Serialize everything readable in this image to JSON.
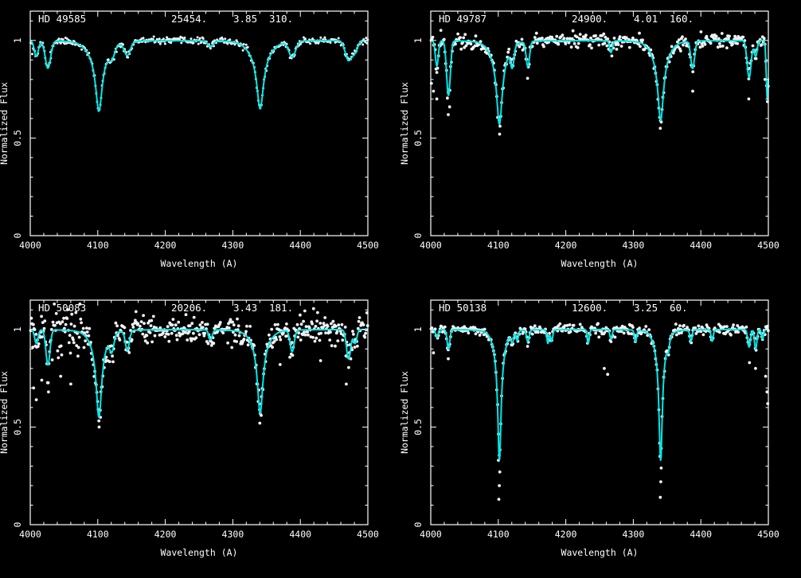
{
  "figure": {
    "description": "Four-panel stellar spectra grid with observed data (white dots) and model fits (cyan lines)",
    "xlabel": "Wavelength (A)",
    "ylabel": "Normalized Flux"
  },
  "style": {
    "background": "#000000",
    "axis_color": "#ffffff",
    "model_color": "#00e8e8",
    "data_color": "#f2f2f2"
  },
  "chart_data": [
    {
      "type": "line",
      "title": "HD 49585",
      "teff": "25454.",
      "logg": "3.85",
      "vsini": "310.",
      "xlabel": "Wavelength (A)",
      "ylabel": "Normalized Flux",
      "xlim": [
        4000,
        4500
      ],
      "ylim": [
        0,
        1.15
      ],
      "xticks": [
        4000,
        4100,
        4200,
        4300,
        4400,
        4500
      ],
      "yticks": [
        0,
        0.5,
        1
      ],
      "series": [
        {
          "name": "observed",
          "marker": "dot",
          "color": "#f2f2f2"
        },
        {
          "name": "model fit",
          "type": "line",
          "color": "#00e8e8"
        }
      ],
      "model_lines": [
        {
          "c": 4101.7,
          "d": 0.3,
          "w": 6.0,
          "t": "l"
        },
        {
          "c": 4101.7,
          "d": 0.06,
          "w": 15,
          "t": "g"
        },
        {
          "c": 4340.5,
          "d": 0.29,
          "w": 6.0,
          "t": "l"
        },
        {
          "c": 4340.5,
          "d": 0.06,
          "w": 15,
          "t": "g"
        },
        {
          "c": 4009.0,
          "d": 0.08,
          "w": 3.0,
          "t": "g"
        },
        {
          "c": 4026.2,
          "d": 0.14,
          "w": 4.0,
          "t": "g"
        },
        {
          "c": 4120.8,
          "d": 0.05,
          "w": 4.0,
          "t": "g"
        },
        {
          "c": 4143.8,
          "d": 0.07,
          "w": 4.5,
          "t": "g"
        },
        {
          "c": 4267.0,
          "d": 0.03,
          "w": 4.0,
          "t": "g"
        },
        {
          "c": 4387.9,
          "d": 0.08,
          "w": 5.0,
          "t": "g"
        },
        {
          "c": 4471.5,
          "d": 0.1,
          "w": 5.0,
          "t": "g"
        },
        {
          "c": 4481.2,
          "d": 0.05,
          "w": 4.0,
          "t": "g"
        }
      ],
      "noise_sigma": 0.008,
      "dot_radius": 1.5,
      "dot_step": 1.2,
      "seed": 11,
      "outliers": [
        [
          4003,
          0.93
        ],
        [
          4030,
          0.94
        ],
        [
          4468,
          0.92
        ]
      ]
    },
    {
      "type": "line",
      "title": "HD 49787",
      "teff": "24900.",
      "logg": "4.01",
      "vsini": "160.",
      "xlabel": "Wavelength (A)",
      "ylabel": "Normalized Flux",
      "xlim": [
        4000,
        4500
      ],
      "ylim": [
        0,
        1.15
      ],
      "xticks": [
        4000,
        4100,
        4200,
        4300,
        4400,
        4500
      ],
      "yticks": [
        0,
        0.5,
        1
      ],
      "series": [
        {
          "name": "observed",
          "marker": "dot",
          "color": "#f2f2f2"
        },
        {
          "name": "model fit",
          "type": "line",
          "color": "#00e8e8"
        }
      ],
      "model_lines": [
        {
          "c": 4101.7,
          "d": 0.36,
          "w": 5.0,
          "t": "l"
        },
        {
          "c": 4101.7,
          "d": 0.07,
          "w": 12,
          "t": "g"
        },
        {
          "c": 4340.5,
          "d": 0.34,
          "w": 5.0,
          "t": "l"
        },
        {
          "c": 4340.5,
          "d": 0.07,
          "w": 12,
          "t": "g"
        },
        {
          "c": 4009.0,
          "d": 0.13,
          "w": 2.2,
          "t": "g"
        },
        {
          "c": 4026.2,
          "d": 0.28,
          "w": 2.8,
          "t": "g"
        },
        {
          "c": 4120.8,
          "d": 0.1,
          "w": 2.5,
          "t": "g"
        },
        {
          "c": 4143.8,
          "d": 0.13,
          "w": 2.5,
          "t": "g"
        },
        {
          "c": 4267.0,
          "d": 0.06,
          "w": 2.0,
          "t": "g"
        },
        {
          "c": 4387.9,
          "d": 0.14,
          "w": 2.8,
          "t": "g"
        },
        {
          "c": 4471.5,
          "d": 0.19,
          "w": 3.0,
          "t": "g"
        },
        {
          "c": 4481.2,
          "d": 0.08,
          "w": 2.2,
          "t": "g"
        },
        {
          "c": 4498.5,
          "d": 0.3,
          "w": 1.6,
          "t": "g"
        }
      ],
      "noise_sigma": 0.018,
      "dot_radius": 1.9,
      "dot_step": 1.2,
      "seed": 22,
      "outliers": [
        [
          4001,
          0.78
        ],
        [
          4004,
          0.74
        ],
        [
          4009,
          0.7
        ],
        [
          4026,
          0.62
        ],
        [
          4028,
          0.66
        ],
        [
          4102,
          0.52
        ],
        [
          4340,
          0.55
        ],
        [
          4388,
          0.74
        ],
        [
          4471,
          0.7
        ],
        [
          4495,
          0.8
        ]
      ]
    },
    {
      "type": "line",
      "title": "HD 50083",
      "teff": "20206.",
      "logg": "3.43",
      "vsini": "181.",
      "xlabel": "Wavelength (A)",
      "ylabel": "Normalized Flux",
      "xlim": [
        4000,
        4500
      ],
      "ylim": [
        0,
        1.15
      ],
      "xticks": [
        4000,
        4100,
        4200,
        4300,
        4400,
        4500
      ],
      "yticks": [
        0,
        0.5,
        1
      ],
      "series": [
        {
          "name": "observed",
          "marker": "dot",
          "color": "#f2f2f2"
        },
        {
          "name": "model fit",
          "type": "line",
          "color": "#00e8e8"
        }
      ],
      "model_lines": [
        {
          "c": 4101.7,
          "d": 0.4,
          "w": 5.0,
          "t": "l"
        },
        {
          "c": 4101.7,
          "d": 0.05,
          "w": 12,
          "t": "g"
        },
        {
          "c": 4340.5,
          "d": 0.38,
          "w": 5.0,
          "t": "l"
        },
        {
          "c": 4340.5,
          "d": 0.05,
          "w": 12,
          "t": "g"
        },
        {
          "c": 4009.0,
          "d": 0.07,
          "w": 2.5,
          "t": "g"
        },
        {
          "c": 4026.2,
          "d": 0.18,
          "w": 3.0,
          "t": "g"
        },
        {
          "c": 4120.8,
          "d": 0.08,
          "w": 3.0,
          "t": "g"
        },
        {
          "c": 4143.8,
          "d": 0.1,
          "w": 3.0,
          "t": "g"
        },
        {
          "c": 4267.0,
          "d": 0.05,
          "w": 2.5,
          "t": "g"
        },
        {
          "c": 4387.9,
          "d": 0.11,
          "w": 3.0,
          "t": "g"
        },
        {
          "c": 4471.5,
          "d": 0.15,
          "w": 3.2,
          "t": "g"
        },
        {
          "c": 4481.2,
          "d": 0.07,
          "w": 2.5,
          "t": "g"
        }
      ],
      "noise_sigma": 0.034,
      "noise_boost": {
        "below": 4075,
        "factor": 1.8
      },
      "dot_radius": 1.9,
      "dot_step": 1.0,
      "seed": 33,
      "outliers": [
        [
          4005,
          0.7
        ],
        [
          4009,
          0.64
        ],
        [
          4017,
          0.74
        ],
        [
          4027,
          0.68
        ],
        [
          4045,
          0.76
        ],
        [
          4060,
          0.72
        ],
        [
          4102,
          0.5
        ],
        [
          4104,
          0.55
        ],
        [
          4340,
          0.52
        ],
        [
          4342,
          0.56
        ],
        [
          4370,
          0.82
        ],
        [
          4430,
          0.84
        ],
        [
          4468,
          0.72
        ]
      ]
    },
    {
      "type": "line",
      "title": "HD 50138",
      "teff": "12600.",
      "logg": "3.25",
      "vsini": "60.",
      "xlabel": "Wavelength (A)",
      "ylabel": "Normalized Flux",
      "xlim": [
        4000,
        4500
      ],
      "ylim": [
        0,
        1.15
      ],
      "xticks": [
        4000,
        4100,
        4200,
        4300,
        4400,
        4500
      ],
      "yticks": [
        0,
        0.5,
        1
      ],
      "series": [
        {
          "name": "observed",
          "marker": "dot",
          "color": "#f2f2f2"
        },
        {
          "name": "model fit",
          "type": "line",
          "color": "#00e8e8"
        }
      ],
      "model_lines": [
        {
          "c": 4101.7,
          "d": 0.58,
          "w": 3.0,
          "t": "l"
        },
        {
          "c": 4101.7,
          "d": 0.09,
          "w": 8.0,
          "t": "g"
        },
        {
          "c": 4340.5,
          "d": 0.58,
          "w": 3.0,
          "t": "l"
        },
        {
          "c": 4340.5,
          "d": 0.09,
          "w": 8.0,
          "t": "g"
        },
        {
          "c": 4009.0,
          "d": 0.04,
          "w": 1.8,
          "t": "g"
        },
        {
          "c": 4026.2,
          "d": 0.1,
          "w": 2.0,
          "t": "g"
        },
        {
          "c": 4120.8,
          "d": 0.05,
          "w": 2.0,
          "t": "g"
        },
        {
          "c": 4128.1,
          "d": 0.05,
          "w": 1.6,
          "t": "g"
        },
        {
          "c": 4143.8,
          "d": 0.06,
          "w": 2.0,
          "t": "g"
        },
        {
          "c": 4173.5,
          "d": 0.07,
          "w": 1.6,
          "t": "g"
        },
        {
          "c": 4179.0,
          "d": 0.06,
          "w": 1.6,
          "t": "g"
        },
        {
          "c": 4233.2,
          "d": 0.07,
          "w": 1.6,
          "t": "g"
        },
        {
          "c": 4267.0,
          "d": 0.05,
          "w": 1.6,
          "t": "g"
        },
        {
          "c": 4303.2,
          "d": 0.06,
          "w": 1.6,
          "t": "g"
        },
        {
          "c": 4351.8,
          "d": 0.05,
          "w": 1.6,
          "t": "g"
        },
        {
          "c": 4385.4,
          "d": 0.06,
          "w": 1.6,
          "t": "g"
        },
        {
          "c": 4416.8,
          "d": 0.06,
          "w": 1.6,
          "t": "g"
        },
        {
          "c": 4471.5,
          "d": 0.09,
          "w": 2.0,
          "t": "g"
        },
        {
          "c": 4481.2,
          "d": 0.1,
          "w": 1.8,
          "t": "g"
        },
        {
          "c": 4491.4,
          "d": 0.05,
          "w": 1.5,
          "t": "g"
        }
      ],
      "noise_sigma": 0.012,
      "dot_radius": 1.9,
      "dot_step": 1.2,
      "seed": 44,
      "outliers": [
        [
          4100.8,
          0.13
        ],
        [
          4101.5,
          0.2
        ],
        [
          4102.2,
          0.27
        ],
        [
          4100.2,
          0.33
        ],
        [
          4340.0,
          0.14
        ],
        [
          4340.7,
          0.22
        ],
        [
          4341.3,
          0.29
        ],
        [
          4339.5,
          0.35
        ],
        [
          4262,
          0.77
        ],
        [
          4257,
          0.8
        ],
        [
          4472,
          0.83
        ],
        [
          4481,
          0.8
        ],
        [
          4496,
          0.76
        ],
        [
          4498,
          0.68
        ],
        [
          4499,
          0.62
        ],
        [
          4004,
          0.88
        ],
        [
          4026,
          0.85
        ]
      ]
    }
  ]
}
